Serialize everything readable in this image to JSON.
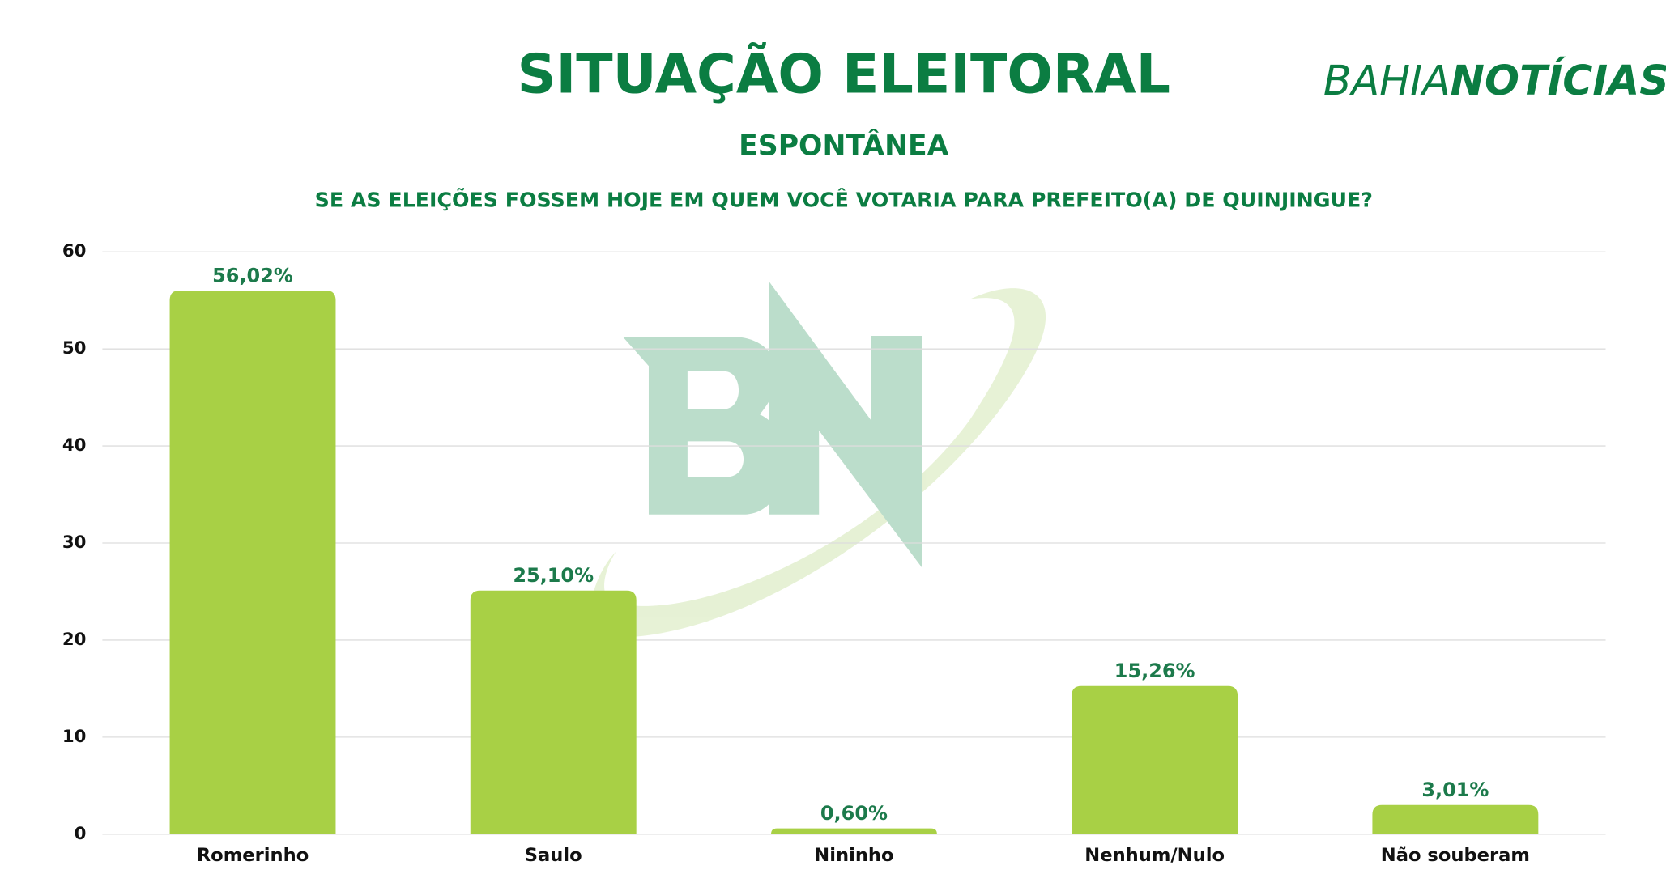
{
  "chart_data": {
    "type": "bar",
    "title": "SITUAÇÃO ELEITORAL",
    "subtitle": "ESPONTÂNEA",
    "question": "SE AS ELEIÇÕES FOSSEM HOJE EM QUEM VOCÊ VOTARIA PARA PREFEITO(A) DE QUINJINGUE?",
    "categories": [
      "Romerinho",
      "Saulo",
      "Nininho",
      "Nenhum/Nulo",
      "Não souberam"
    ],
    "values": [
      56.02,
      25.1,
      0.6,
      15.26,
      3.01
    ],
    "value_labels": [
      "56,02%",
      "25,10%",
      "0,60%",
      "15,26%",
      "3,01%"
    ],
    "color": "#a8d045",
    "ylim": [
      0,
      60
    ],
    "yticks": [
      0,
      10,
      20,
      30,
      40,
      50,
      60
    ],
    "grid": true
  },
  "logo": {
    "left": "BAHIA",
    "right": "NOTÍCIAS"
  }
}
